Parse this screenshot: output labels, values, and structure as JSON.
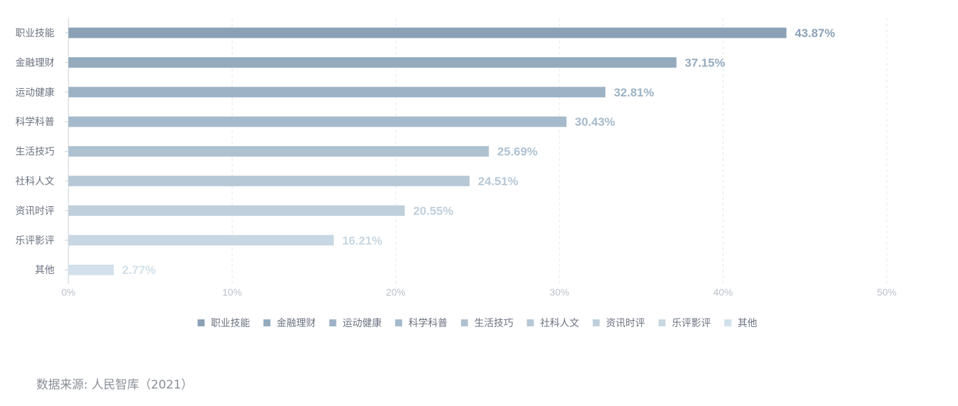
{
  "chart_data": {
    "type": "bar",
    "orientation": "horizontal",
    "categories": [
      "职业技能",
      "金融理财",
      "运动健康",
      "科学科普",
      "生活技巧",
      "社科人文",
      "资讯时评",
      "乐评影评",
      "其他"
    ],
    "values": [
      43.87,
      37.15,
      32.81,
      30.43,
      25.69,
      24.51,
      20.55,
      16.21,
      2.77
    ],
    "value_labels": [
      "43.87%",
      "37.15%",
      "32.81%",
      "30.43%",
      "25.69%",
      "24.51%",
      "20.55%",
      "16.21%",
      "2.77%"
    ],
    "colors": [
      "#8ba2b6",
      "#94abbe",
      "#9db3c5",
      "#a5bacb",
      "#aec1d1",
      "#b6c8d6",
      "#bfcfdb",
      "#c8d7e2",
      "#d1e0ea"
    ],
    "xlim": [
      0,
      50
    ],
    "x_ticks": [
      0,
      10,
      20,
      30,
      40,
      50
    ],
    "x_tick_labels": [
      "0%",
      "10%",
      "20%",
      "30%",
      "40%",
      "50%"
    ],
    "grid": true,
    "legend_position": "bottom-center",
    "legend": [
      "职业技能",
      "金融理财",
      "运动健康",
      "科学科普",
      "生活技巧",
      "社科人文",
      "资讯时评",
      "乐评影评",
      "其他"
    ]
  },
  "source": "数据来源: 人民智库（2021）"
}
